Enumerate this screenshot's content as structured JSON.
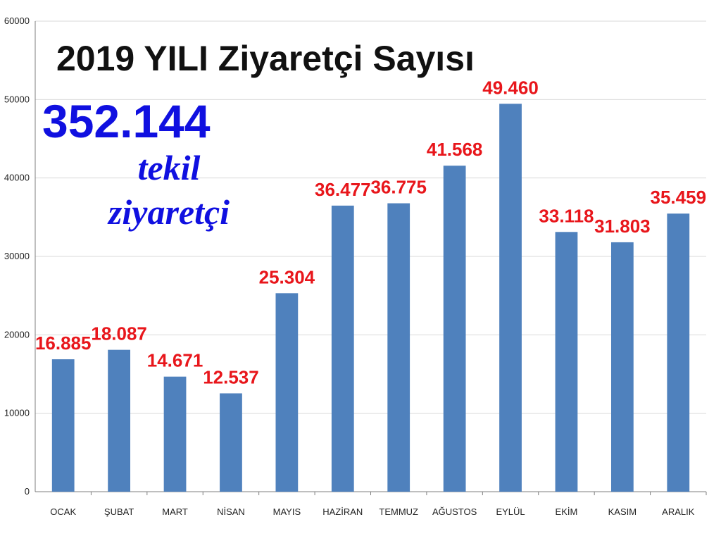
{
  "colors": {
    "bar": "#4f81bd",
    "data_label": "#e8161b",
    "highlight": "#1010e0",
    "title": "#111111",
    "gridline": "#d9d9d9",
    "axis": "#7f7f7f"
  },
  "header": {
    "title": "2019 YILI Ziyaretçi Sayısı",
    "total_value": "352.144",
    "subtitle_line1": "tekil",
    "subtitle_line2": "ziyaretçi"
  },
  "chart_data": {
    "type": "bar",
    "title": "2019 YILI Ziyaretçi Sayısı",
    "xlabel": "",
    "ylabel": "",
    "ylim": [
      0,
      60000
    ],
    "yticks": [
      0,
      10000,
      20000,
      30000,
      40000,
      50000,
      60000
    ],
    "grid": true,
    "legend": "none",
    "categories": [
      "OCAK",
      "ŞUBAT",
      "MART",
      "NİSAN",
      "MAYIS",
      "HAZİRAN",
      "TEMMUZ",
      "AĞUSTOS",
      "EYLÜL",
      "EKİM",
      "KASIM",
      "ARALIK"
    ],
    "values": [
      16885,
      18087,
      14671,
      12537,
      25304,
      36477,
      36775,
      41568,
      49460,
      33118,
      31803,
      35459
    ],
    "data_labels": [
      "16.885",
      "18.087",
      "14.671",
      "12.537",
      "25.304",
      "36.477",
      "36.775",
      "41.568",
      "49.460",
      "33.118",
      "31.803",
      "35.459"
    ]
  }
}
